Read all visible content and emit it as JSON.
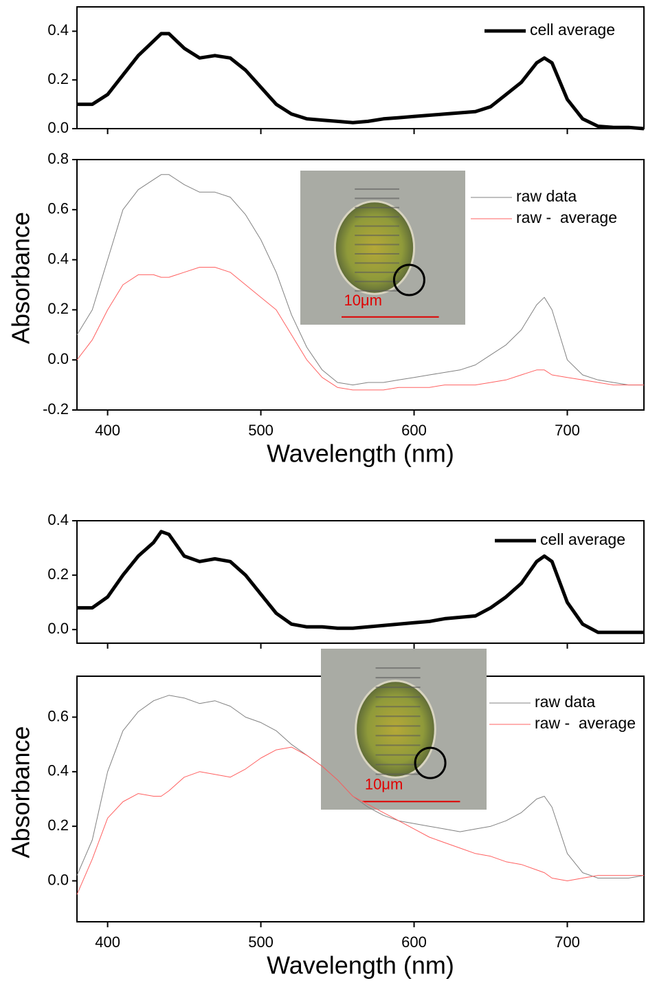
{
  "chart_data": [
    {
      "type": "line",
      "legend": "upper right",
      "x_tick_labels": false,
      "x": [
        380,
        390,
        400,
        410,
        420,
        430,
        435,
        440,
        450,
        460,
        470,
        480,
        490,
        500,
        510,
        520,
        530,
        540,
        550,
        560,
        570,
        580,
        590,
        600,
        610,
        620,
        630,
        640,
        650,
        660,
        670,
        680,
        685,
        690,
        700,
        710,
        720,
        730,
        740,
        750
      ],
      "series": [
        {
          "name": "cell average",
          "color": "#000000",
          "linewidth": 5,
          "values": [
            0.1,
            0.1,
            0.14,
            0.22,
            0.3,
            0.36,
            0.39,
            0.39,
            0.33,
            0.29,
            0.3,
            0.29,
            0.24,
            0.17,
            0.1,
            0.06,
            0.04,
            0.035,
            0.03,
            0.025,
            0.03,
            0.04,
            0.045,
            0.05,
            0.055,
            0.06,
            0.065,
            0.07,
            0.09,
            0.14,
            0.19,
            0.27,
            0.29,
            0.27,
            0.12,
            0.04,
            0.01,
            0.005,
            0.005,
            0.0
          ]
        }
      ],
      "xlim": [
        380,
        750
      ],
      "xticks": [
        400,
        500,
        600,
        700
      ],
      "ylim": [
        0,
        0.5
      ],
      "yticks": [
        {
          "value": 0,
          "label": "0.0"
        },
        0.2,
        0.4
      ]
    },
    {
      "type": "line",
      "legend": "upper right",
      "x_tick_labels": true,
      "xlabel": "Wavelength (nm)",
      "ylabel": "Absorbance",
      "inset_label": "10μm",
      "x": [
        380,
        390,
        400,
        410,
        420,
        430,
        435,
        440,
        450,
        460,
        470,
        480,
        490,
        500,
        510,
        520,
        530,
        540,
        550,
        560,
        570,
        580,
        590,
        600,
        610,
        620,
        630,
        640,
        650,
        660,
        670,
        680,
        685,
        690,
        700,
        710,
        720,
        730,
        740,
        750
      ],
      "series": [
        {
          "name": "raw data",
          "color": "#808080",
          "linewidth": 1,
          "values": [
            0.1,
            0.2,
            0.4,
            0.6,
            0.68,
            0.72,
            0.74,
            0.74,
            0.7,
            0.67,
            0.67,
            0.65,
            0.58,
            0.48,
            0.35,
            0.18,
            0.05,
            -0.04,
            -0.09,
            -0.1,
            -0.09,
            -0.09,
            -0.08,
            -0.07,
            -0.06,
            -0.05,
            -0.04,
            -0.02,
            0.02,
            0.06,
            0.12,
            0.22,
            0.25,
            0.2,
            0.0,
            -0.06,
            -0.08,
            -0.09,
            -0.1,
            -0.1
          ]
        },
        {
          "name": "raw -  average",
          "color": "#ff6060",
          "linewidth": 1,
          "values": [
            0.0,
            0.08,
            0.2,
            0.3,
            0.34,
            0.34,
            0.33,
            0.33,
            0.35,
            0.37,
            0.37,
            0.35,
            0.3,
            0.25,
            0.2,
            0.1,
            0.0,
            -0.07,
            -0.11,
            -0.12,
            -0.12,
            -0.12,
            -0.11,
            -0.11,
            -0.11,
            -0.1,
            -0.1,
            -0.1,
            -0.09,
            -0.08,
            -0.06,
            -0.04,
            -0.04,
            -0.06,
            -0.07,
            -0.08,
            -0.09,
            -0.1,
            -0.1,
            -0.1
          ]
        }
      ],
      "xlim": [
        380,
        750
      ],
      "xticks": [
        400,
        500,
        600,
        700
      ],
      "ylim": [
        -0.2,
        0.8
      ],
      "yticks": [
        -0.2,
        {
          "value": 0,
          "label": "0.0"
        },
        0.2,
        0.4,
        0.6,
        0.8
      ]
    },
    {
      "type": "line",
      "legend": "upper right",
      "x_tick_labels": false,
      "x": [
        380,
        390,
        400,
        410,
        420,
        430,
        435,
        440,
        450,
        460,
        470,
        480,
        490,
        500,
        510,
        520,
        530,
        540,
        550,
        560,
        570,
        580,
        590,
        600,
        610,
        620,
        630,
        640,
        650,
        660,
        670,
        680,
        685,
        690,
        700,
        710,
        720,
        730,
        740,
        750
      ],
      "series": [
        {
          "name": "cell average",
          "color": "#000000",
          "linewidth": 5,
          "values": [
            0.08,
            0.08,
            0.12,
            0.2,
            0.27,
            0.32,
            0.36,
            0.35,
            0.27,
            0.25,
            0.26,
            0.25,
            0.2,
            0.13,
            0.06,
            0.02,
            0.01,
            0.01,
            0.005,
            0.005,
            0.01,
            0.015,
            0.02,
            0.025,
            0.03,
            0.04,
            0.045,
            0.05,
            0.08,
            0.12,
            0.17,
            0.25,
            0.27,
            0.25,
            0.1,
            0.02,
            -0.01,
            -0.01,
            -0.01,
            -0.01
          ]
        }
      ],
      "xlim": [
        380,
        750
      ],
      "xticks": [
        400,
        500,
        600,
        700
      ],
      "ylim": [
        -0.05,
        0.4
      ],
      "yticks": [
        {
          "value": 0,
          "label": "0.0"
        },
        0.2,
        0.4
      ]
    },
    {
      "type": "line",
      "legend": "upper right",
      "x_tick_labels": true,
      "xlabel": "Wavelength (nm)",
      "ylabel": "Absorbance",
      "inset_label": "10μm",
      "x": [
        380,
        390,
        400,
        410,
        420,
        430,
        435,
        440,
        450,
        460,
        470,
        480,
        490,
        500,
        510,
        520,
        530,
        540,
        550,
        560,
        570,
        580,
        590,
        600,
        610,
        620,
        630,
        640,
        650,
        660,
        670,
        680,
        685,
        690,
        700,
        710,
        720,
        730,
        740,
        750
      ],
      "series": [
        {
          "name": "raw data",
          "color": "#808080",
          "linewidth": 1,
          "values": [
            0.02,
            0.15,
            0.4,
            0.55,
            0.62,
            0.66,
            0.67,
            0.68,
            0.67,
            0.65,
            0.66,
            0.64,
            0.6,
            0.58,
            0.55,
            0.5,
            0.46,
            0.42,
            0.37,
            0.31,
            0.27,
            0.24,
            0.22,
            0.21,
            0.2,
            0.19,
            0.18,
            0.19,
            0.2,
            0.22,
            0.25,
            0.3,
            0.31,
            0.27,
            0.1,
            0.03,
            0.01,
            0.01,
            0.01,
            0.02
          ]
        },
        {
          "name": "raw -  average",
          "color": "#ff6060",
          "linewidth": 1,
          "values": [
            -0.05,
            0.08,
            0.23,
            0.29,
            0.32,
            0.31,
            0.31,
            0.33,
            0.38,
            0.4,
            0.39,
            0.38,
            0.41,
            0.45,
            0.48,
            0.49,
            0.46,
            0.42,
            0.37,
            0.31,
            0.28,
            0.25,
            0.22,
            0.19,
            0.16,
            0.14,
            0.12,
            0.1,
            0.09,
            0.07,
            0.06,
            0.04,
            0.03,
            0.01,
            0.0,
            0.01,
            0.02,
            0.02,
            0.02,
            0.02
          ]
        }
      ],
      "xlim": [
        380,
        750
      ],
      "xticks": [
        400,
        500,
        600,
        700
      ],
      "ylim": [
        -0.15,
        0.75
      ],
      "yticks": [
        {
          "value": 0,
          "label": "0.0"
        },
        0.2,
        0.4,
        0.6
      ]
    }
  ]
}
